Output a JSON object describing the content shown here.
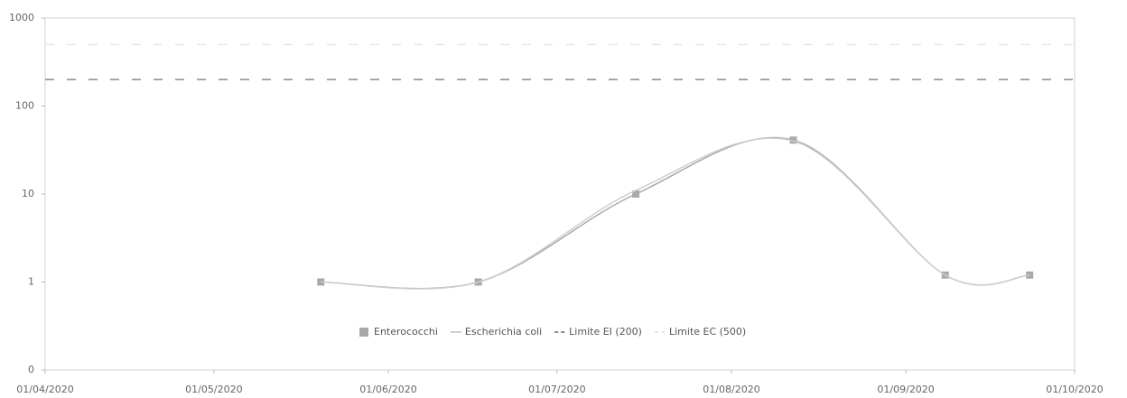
{
  "chart_data": {
    "type": "line",
    "log_y": true,
    "grid": false,
    "x_is_date": true,
    "xlim": [
      "2020-04-01",
      "2020-10-01"
    ],
    "xticks": [
      {
        "value": "2020-04-01",
        "label": "01/04/2020"
      },
      {
        "value": "2020-05-01",
        "label": "01/05/2020"
      },
      {
        "value": "2020-06-01",
        "label": "01/06/2020"
      },
      {
        "value": "2020-07-01",
        "label": "01/07/2020"
      },
      {
        "value": "2020-08-01",
        "label": "01/08/2020"
      },
      {
        "value": "2020-09-01",
        "label": "01/09/2020"
      },
      {
        "value": "2020-10-01",
        "label": "01/10/2020"
      }
    ],
    "ylim": [
      0.1,
      1000
    ],
    "yticks": [
      {
        "value": 0.1,
        "label": "0"
      },
      1,
      10,
      100,
      1000
    ],
    "legend": "bottom",
    "series": [
      {
        "name": "Enterococchi",
        "color": "#a9a9a9",
        "dash": false,
        "markers": true,
        "x": [
          "2020-05-20",
          "2020-06-17",
          "2020-07-15",
          "2020-08-12",
          "2020-09-08",
          "2020-09-23"
        ],
        "values": [
          1,
          1,
          10,
          41,
          1.2,
          1.2
        ]
      },
      {
        "name": "Escherichia coli",
        "color": "#cfcfcf",
        "dash": false,
        "markers": false,
        "x": [
          "2020-05-20",
          "2020-06-17",
          "2020-07-15",
          "2020-08-12",
          "2020-09-08",
          "2020-09-23"
        ],
        "values": [
          1,
          1,
          11,
          40,
          1.2,
          1.2
        ]
      },
      {
        "name": "Limite EI (200)",
        "color": "#8a8a8a",
        "dash": true,
        "markers": false,
        "x": [
          "2020-04-01",
          "2020-10-01"
        ],
        "values": [
          200,
          200
        ]
      },
      {
        "name": "Limite EC (500)",
        "color": "#e6e6e6",
        "dash": true,
        "markers": false,
        "x": [
          "2020-04-01",
          "2020-10-01"
        ],
        "values": [
          500,
          500
        ]
      }
    ]
  }
}
